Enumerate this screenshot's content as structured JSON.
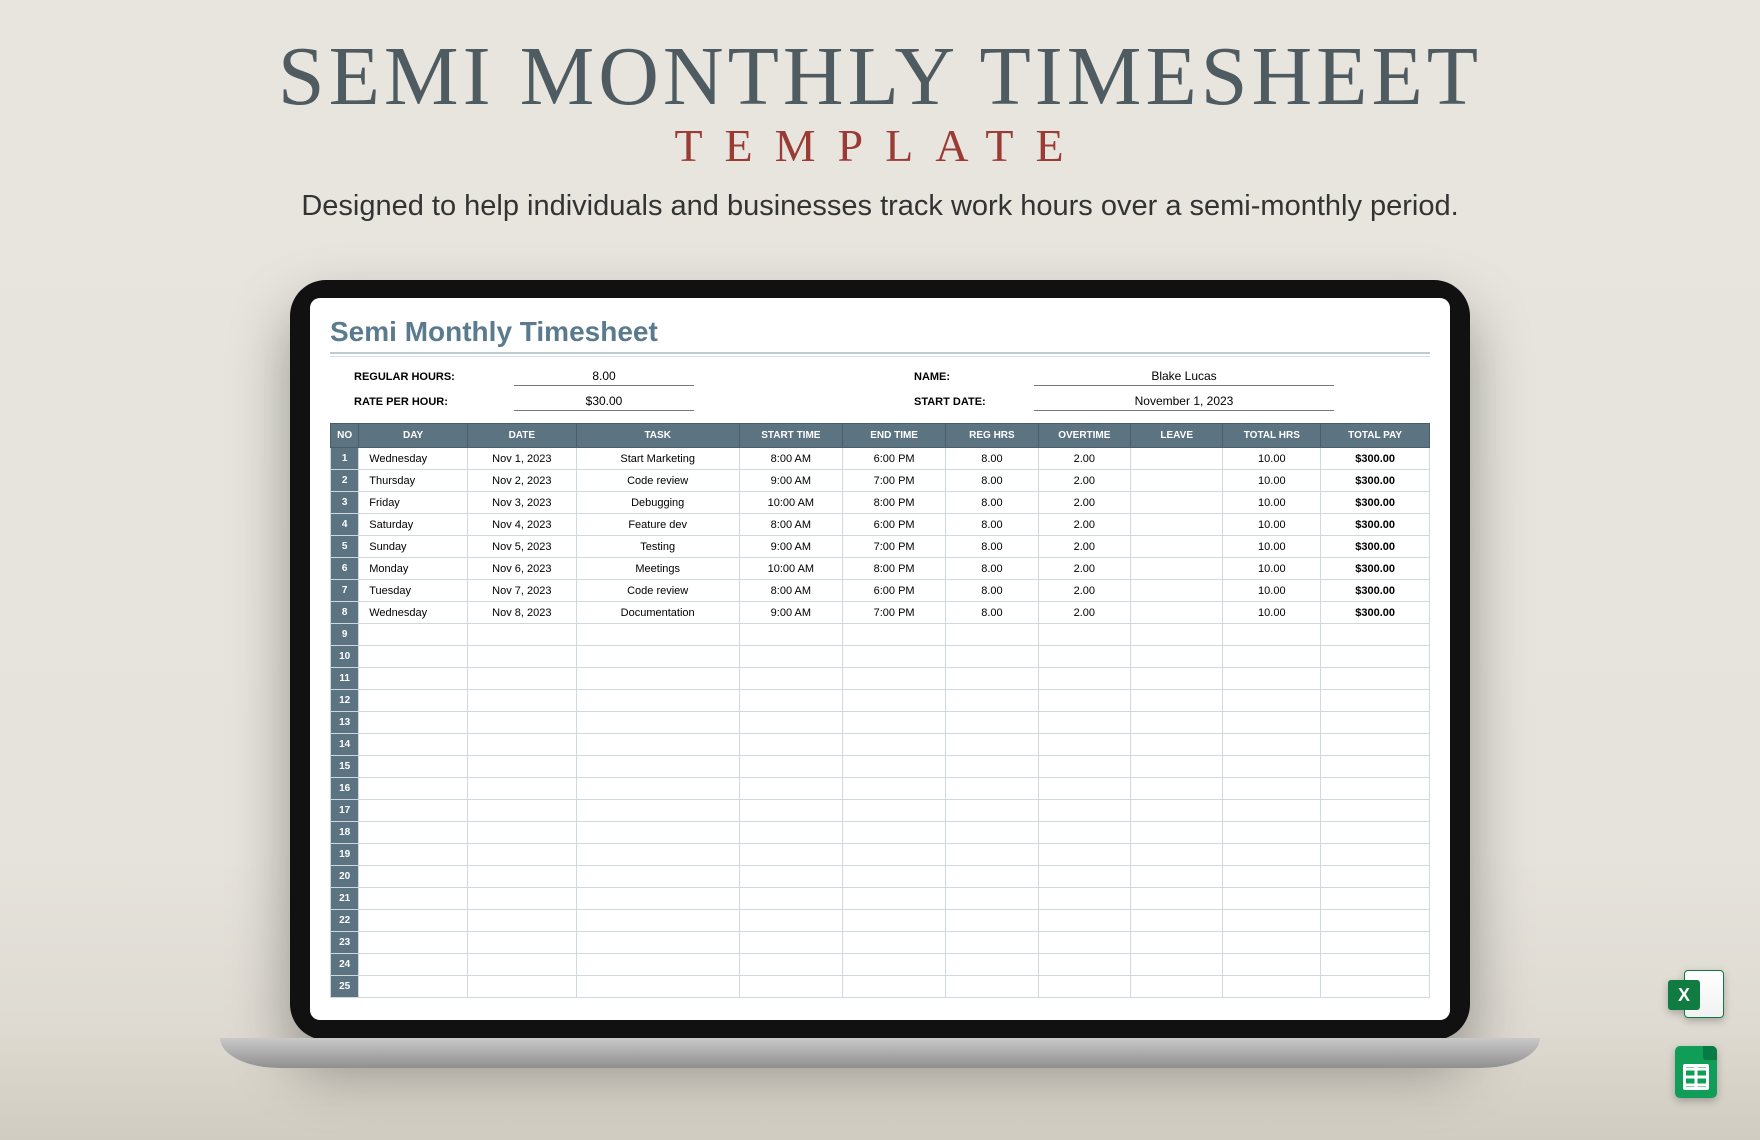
{
  "hero": {
    "title": "SEMI MONTHLY TIMESHEET",
    "subtitle": "TEMPLATE",
    "description": "Designed to help individuals and businesses track work hours over a semi-monthly period."
  },
  "sheet": {
    "title": "Semi Monthly Timesheet",
    "info": {
      "regular_hours_label": "REGULAR HOURS:",
      "regular_hours_value": "8.00",
      "rate_label": "RATE PER HOUR:",
      "rate_value": "$30.00",
      "name_label": "NAME:",
      "name_value": "Blake Lucas",
      "startdate_label": "START DATE:",
      "startdate_value": "November 1, 2023"
    },
    "columns": [
      "NO",
      "DAY",
      "DATE",
      "TASK",
      "START TIME",
      "END TIME",
      "REG HRS",
      "OVERTIME",
      "LEAVE",
      "TOTAL HRS",
      "TOTAL PAY"
    ],
    "rows": [
      {
        "no": "1",
        "day": "Wednesday",
        "date": "Nov 1, 2023",
        "task": "Start Marketing",
        "start": "8:00 AM",
        "end": "6:00 PM",
        "reg": "8.00",
        "ot": "2.00",
        "leave": "",
        "total": "10.00",
        "pay": "$300.00"
      },
      {
        "no": "2",
        "day": "Thursday",
        "date": "Nov 2, 2023",
        "task": "Code review",
        "start": "9:00 AM",
        "end": "7:00 PM",
        "reg": "8.00",
        "ot": "2.00",
        "leave": "",
        "total": "10.00",
        "pay": "$300.00"
      },
      {
        "no": "3",
        "day": "Friday",
        "date": "Nov 3, 2023",
        "task": "Debugging",
        "start": "10:00 AM",
        "end": "8:00 PM",
        "reg": "8.00",
        "ot": "2.00",
        "leave": "",
        "total": "10.00",
        "pay": "$300.00"
      },
      {
        "no": "4",
        "day": "Saturday",
        "date": "Nov 4, 2023",
        "task": "Feature dev",
        "start": "8:00 AM",
        "end": "6:00 PM",
        "reg": "8.00",
        "ot": "2.00",
        "leave": "",
        "total": "10.00",
        "pay": "$300.00"
      },
      {
        "no": "5",
        "day": "Sunday",
        "date": "Nov 5, 2023",
        "task": "Testing",
        "start": "9:00 AM",
        "end": "7:00 PM",
        "reg": "8.00",
        "ot": "2.00",
        "leave": "",
        "total": "10.00",
        "pay": "$300.00"
      },
      {
        "no": "6",
        "day": "Monday",
        "date": "Nov 6, 2023",
        "task": "Meetings",
        "start": "10:00 AM",
        "end": "8:00 PM",
        "reg": "8.00",
        "ot": "2.00",
        "leave": "",
        "total": "10.00",
        "pay": "$300.00"
      },
      {
        "no": "7",
        "day": "Tuesday",
        "date": "Nov 7, 2023",
        "task": "Code review",
        "start": "8:00 AM",
        "end": "6:00 PM",
        "reg": "8.00",
        "ot": "2.00",
        "leave": "",
        "total": "10.00",
        "pay": "$300.00"
      },
      {
        "no": "8",
        "day": "Wednesday",
        "date": "Nov 8, 2023",
        "task": "Documentation",
        "start": "9:00 AM",
        "end": "7:00 PM",
        "reg": "8.00",
        "ot": "2.00",
        "leave": "",
        "total": "10.00",
        "pay": "$300.00"
      }
    ],
    "empty_rows": [
      "9",
      "10",
      "11",
      "12",
      "13",
      "14",
      "15",
      "16",
      "17",
      "18",
      "19",
      "20",
      "21",
      "22",
      "23",
      "24",
      "25"
    ]
  },
  "colors": {
    "title_color": "#4e5b60",
    "subtitle_color": "#9a3b36",
    "table_header_bg": "#5c7381",
    "sheet_title_color": "#5a7a8e",
    "excel_green": "#107c41",
    "sheets_green": "#0f9d58",
    "background_top": "#e8e5de"
  },
  "icons": {
    "excel_letter": "X"
  }
}
